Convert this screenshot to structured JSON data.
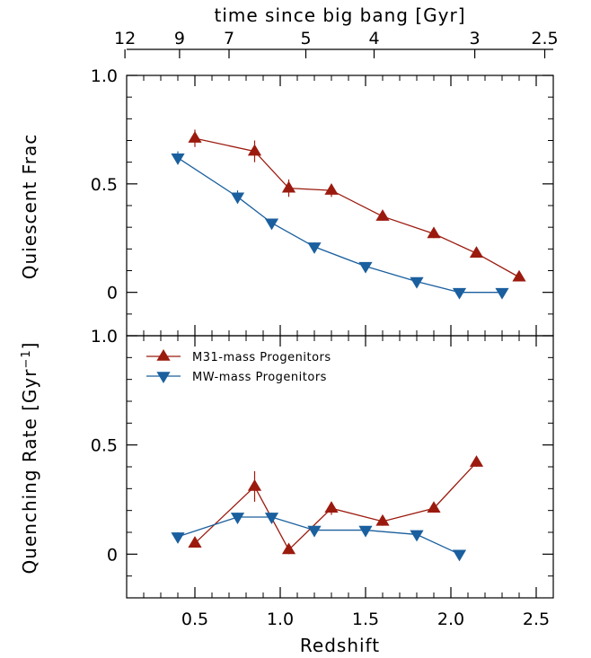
{
  "chart_data": {
    "type": "line",
    "top_axis": {
      "label": "time since big bang [Gyr]",
      "ticks": [
        {
          "label": "12",
          "z": 0.09
        },
        {
          "label": "9",
          "z": 0.41
        },
        {
          "label": "7",
          "z": 0.7
        },
        {
          "label": "5",
          "z": 1.15
        },
        {
          "label": "4",
          "z": 1.55
        },
        {
          "label": "3",
          "z": 2.14
        },
        {
          "label": "2.5",
          "z": 2.55
        }
      ]
    },
    "xlabel": "Redshift",
    "xlim": [
      0.1,
      2.6
    ],
    "xticks": [
      0.5,
      1.0,
      1.5,
      2.0,
      2.5
    ],
    "xtick_labels": [
      "0.5",
      "1.0",
      "1.5",
      "2.0",
      "2.5"
    ],
    "panels": [
      {
        "id": "top",
        "ylabel": "Quiescent Frac",
        "ylim": [
          -0.2,
          1.0
        ],
        "yticks": [
          0,
          0.5,
          1.0
        ],
        "ytick_labels": [
          "0",
          "0.5",
          "1.0"
        ],
        "series": [
          {
            "name": "M31-mass Progenitors",
            "color": "#9b1a0e",
            "marker": "triangle-up",
            "x": [
              0.5,
              0.85,
              1.05,
              1.3,
              1.6,
              1.9,
              2.15,
              2.4
            ],
            "y": [
              0.71,
              0.65,
              0.48,
              0.47,
              0.35,
              0.27,
              0.18,
              0.07
            ],
            "yerr": [
              0.04,
              0.05,
              0.04,
              0.03,
              0.02,
              0.02,
              0.02,
              0.01
            ]
          },
          {
            "name": "MW-mass Progenitors",
            "color": "#1a5f9e",
            "marker": "triangle-down",
            "x": [
              0.4,
              0.75,
              0.95,
              1.2,
              1.5,
              1.8,
              2.05,
              2.3
            ],
            "y": [
              0.62,
              0.44,
              0.32,
              0.21,
              0.12,
              0.05,
              0.0,
              0.0
            ],
            "yerr": [
              0.03,
              0.03,
              0.02,
              0.02,
              0.01,
              0.01,
              0.0,
              0.0
            ]
          }
        ]
      },
      {
        "id": "bottom",
        "ylabel": "Quenching Rate [Gyr",
        "ylabel_sup": "−1",
        "ylabel_end": "]",
        "ylim": [
          -0.2,
          1.0
        ],
        "yticks": [
          0,
          0.5,
          1.0
        ],
        "ytick_labels": [
          "0",
          "0.5",
          "1.0"
        ],
        "series": [
          {
            "name": "M31-mass Progenitors",
            "color": "#9b1a0e",
            "marker": "triangle-up",
            "x": [
              0.5,
              0.85,
              1.05,
              1.3,
              1.6,
              1.9,
              2.15
            ],
            "y": [
              0.05,
              0.31,
              0.02,
              0.21,
              0.15,
              0.21,
              0.42
            ],
            "yerr": [
              0.02,
              0.07,
              0.02,
              0.03,
              0.02,
              0.02,
              0.02
            ]
          },
          {
            "name": "MW-mass Progenitors",
            "color": "#1a5f9e",
            "marker": "triangle-down",
            "x": [
              0.4,
              0.75,
              0.95,
              1.2,
              1.5,
              1.8,
              2.05
            ],
            "y": [
              0.08,
              0.17,
              0.17,
              0.11,
              0.11,
              0.09,
              0.0
            ],
            "yerr": [
              0.02,
              0.02,
              0.02,
              0.02,
              0.01,
              0.01,
              0.0
            ]
          }
        ],
        "legend": {
          "placement": "top-left",
          "entries": [
            {
              "name": "M31-mass Progenitors",
              "color": "#9b1a0e",
              "marker": "triangle-up"
            },
            {
              "name": "MW-mass Progenitors",
              "color": "#1a5f9e",
              "marker": "triangle-down"
            }
          ]
        }
      }
    ],
    "grid": false
  }
}
